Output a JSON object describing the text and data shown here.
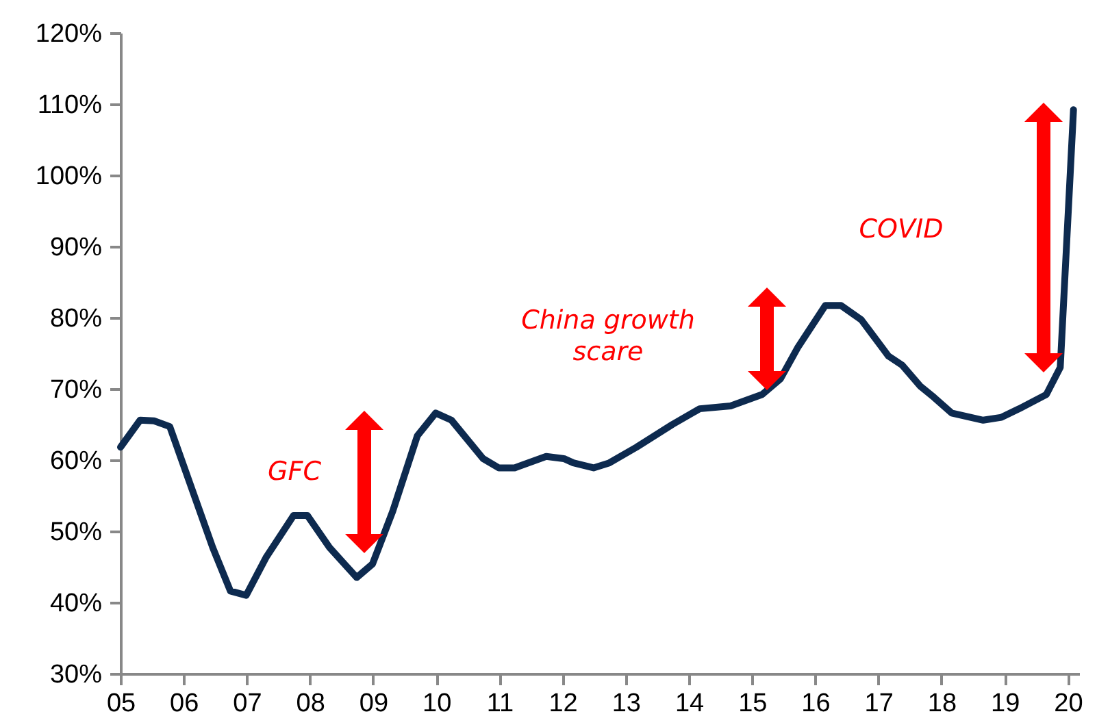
{
  "chart_data": {
    "type": "line",
    "x": [
      2005.0,
      2005.31,
      2005.53,
      2005.78,
      2006.1,
      2006.46,
      2006.74,
      2006.99,
      2007.31,
      2007.74,
      2007.96,
      2008.31,
      2008.74,
      2008.99,
      2009.31,
      2009.7,
      2009.99,
      2010.24,
      2010.74,
      2010.99,
      2011.24,
      2011.74,
      2012.02,
      2012.17,
      2012.49,
      2012.74,
      2013.17,
      2013.74,
      2014.17,
      2014.66,
      2015.16,
      2015.45,
      2015.73,
      2016.16,
      2016.41,
      2016.73,
      2017.16,
      2017.38,
      2017.66,
      2017.88,
      2018.16,
      2018.66,
      2018.95,
      2019.23,
      2019.66,
      2019.88,
      2020.09
    ],
    "series": [
      {
        "color": "#0d2a4f",
        "values": [
          61.8,
          65.6,
          65.5,
          64.7,
          56.7,
          47.7,
          41.6,
          41,
          46.4,
          52.2,
          52.2,
          47.7,
          43.5,
          45.4,
          52.8,
          63.4,
          66.6,
          65.6,
          60.2,
          58.9,
          58.9,
          60.5,
          60.2,
          59.6,
          58.9,
          59.6,
          61.8,
          65,
          67.2,
          67.6,
          69.2,
          71.4,
          75.9,
          81.7,
          81.7,
          79.7,
          74.6,
          73.3,
          70.4,
          68.8,
          66.6,
          65.6,
          66,
          67.2,
          69.2,
          73,
          109.2
        ]
      }
    ],
    "xlim": [
      2005,
      2020.18
    ],
    "xticks": [
      {
        "value": 2005,
        "label": "05"
      },
      {
        "value": 2006,
        "label": "06"
      },
      {
        "value": 2007,
        "label": "07"
      },
      {
        "value": 2008,
        "label": "08"
      },
      {
        "value": 2009,
        "label": "09"
      },
      {
        "value": 2010,
        "label": "10"
      },
      {
        "value": 2011,
        "label": "11"
      },
      {
        "value": 2012,
        "label": "12"
      },
      {
        "value": 2013,
        "label": "13"
      },
      {
        "value": 2014,
        "label": "14"
      },
      {
        "value": 2015,
        "label": "15"
      },
      {
        "value": 2016,
        "label": "16"
      },
      {
        "value": 2017,
        "label": "17"
      },
      {
        "value": 2018,
        "label": "18"
      },
      {
        "value": 2019,
        "label": "19"
      },
      {
        "value": 2020,
        "label": "20"
      }
    ],
    "ylim": [
      30,
      120
    ],
    "yticks": [
      {
        "value": 30,
        "label": "30%"
      },
      {
        "value": 40,
        "label": "40%"
      },
      {
        "value": 50,
        "label": "50%"
      },
      {
        "value": 60,
        "label": "60%"
      },
      {
        "value": 70,
        "label": "70%"
      },
      {
        "value": 80,
        "label": "80%"
      },
      {
        "value": 90,
        "label": "90%"
      },
      {
        "value": 100,
        "label": "100%"
      },
      {
        "value": 110,
        "label": "110%"
      },
      {
        "value": 120,
        "label": "120%"
      }
    ],
    "grid": false,
    "marker": "none",
    "line_style": "solid",
    "annotations": [
      "GFC",
      "China growth scare",
      "COVID"
    ]
  }
}
